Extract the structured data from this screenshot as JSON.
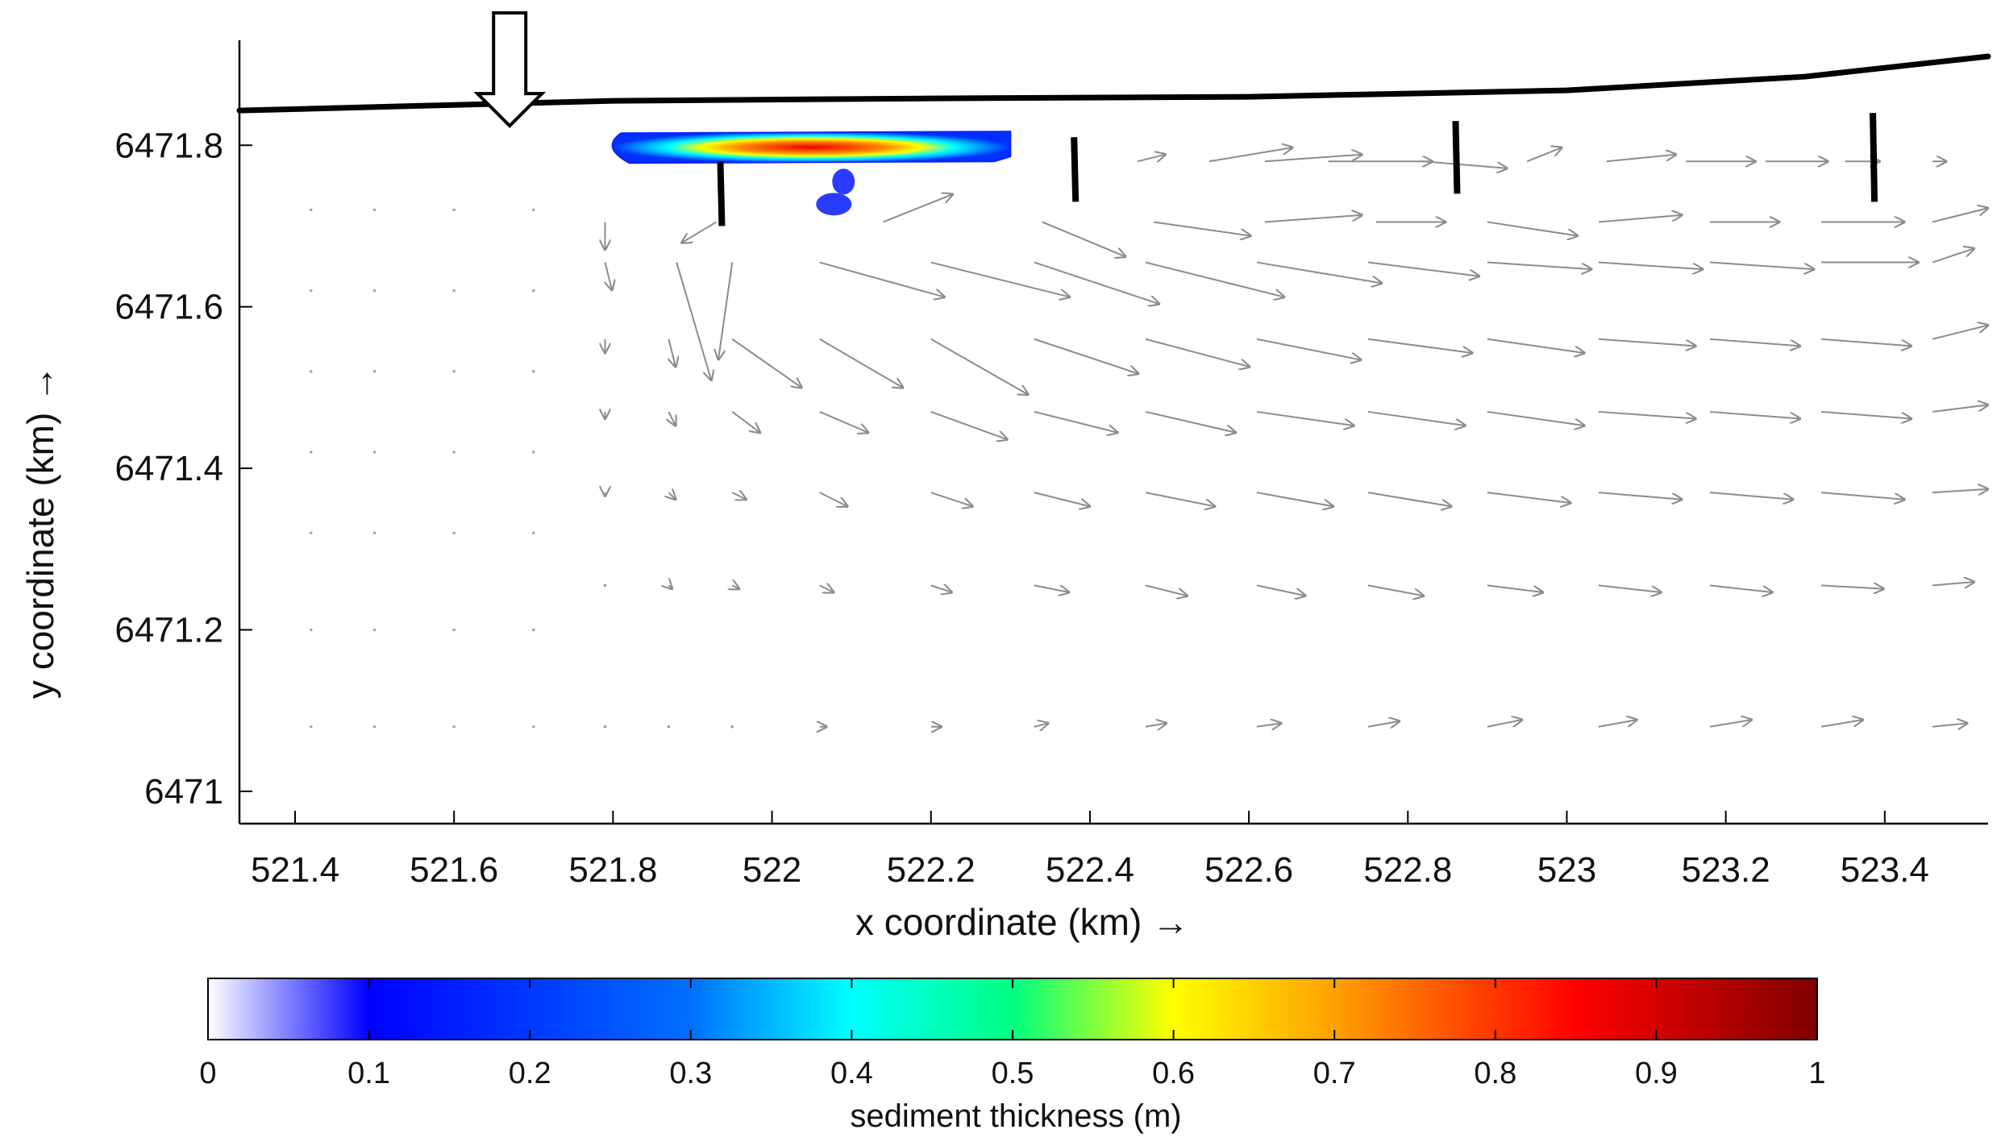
{
  "chart_data": {
    "type": "quiver",
    "xlabel": "x coordinate (km) →",
    "ylabel": "y coordinate (km) →",
    "xlim": [
      521.33,
      523.53
    ],
    "ylim": [
      6470.96,
      6471.92
    ],
    "xticks": [
      521.4,
      521.6,
      521.8,
      522,
      522.2,
      522.4,
      522.6,
      522.8,
      523,
      523.2,
      523.4
    ],
    "xtick_labels": [
      "521.4",
      "521.6",
      "521.8",
      "522",
      "522.2",
      "522.4",
      "522.6",
      "522.8",
      "523",
      "523.2",
      "523.4"
    ],
    "yticks": [
      6471,
      6471.2,
      6471.4,
      6471.6,
      6471.8
    ],
    "ytick_labels": [
      "6471",
      "6471.2",
      "6471.4",
      "6471.6",
      "6471.8"
    ],
    "coastline": [
      [
        521.33,
        6471.843
      ],
      [
        521.8,
        6471.855
      ],
      [
        522.2,
        6471.858
      ],
      [
        522.6,
        6471.86
      ],
      [
        523.0,
        6471.868
      ],
      [
        523.3,
        6471.885
      ],
      [
        523.53,
        6471.91
      ]
    ],
    "groynes": [
      {
        "x": 521.935,
        "y1": 6471.78,
        "y2": 6471.7
      },
      {
        "x": 522.38,
        "y1": 6471.81,
        "y2": 6471.73
      },
      {
        "x": 522.86,
        "y1": 6471.83,
        "y2": 6471.74
      },
      {
        "x": 523.385,
        "y1": 6471.84,
        "y2": 6471.73
      }
    ],
    "inflow_arrow": {
      "x": 521.67,
      "y_top": 6471.94,
      "y_bottom": 6471.86
    },
    "sediment_patches": [
      {
        "name": "nourishment",
        "x_min": 521.79,
        "x_max": 522.3,
        "y_min": 6471.78,
        "y_max": 6471.815,
        "peak_x": 522.09,
        "peak_value": 0.9
      },
      {
        "name": "blob",
        "x": 522.09,
        "y": 6471.745,
        "value": 0.15
      }
    ],
    "vector_rows": [
      {
        "y": 6471.78,
        "x": [
          522.46,
          522.55,
          522.62,
          522.7,
          522.82,
          522.95,
          523.05,
          523.15,
          523.25,
          523.35,
          523.46
        ],
        "u": [
          0.04,
          0.12,
          0.14,
          0.15,
          0.12,
          0.05,
          0.1,
          0.1,
          0.09,
          0.05,
          0.02
        ],
        "v": [
          0.01,
          0.02,
          0.01,
          0.0,
          -0.01,
          0.02,
          0.01,
          0.0,
          0.0,
          0.0,
          0.0
        ]
      },
      {
        "y": 6471.705,
        "x": [
          521.79,
          521.93,
          522.14,
          522.34,
          522.48,
          522.62,
          522.76,
          522.9,
          523.04,
          523.18,
          523.32,
          523.46
        ],
        "u": [
          0.0,
          -0.05,
          0.1,
          0.12,
          0.14,
          0.14,
          0.1,
          0.13,
          0.12,
          0.1,
          0.12,
          0.08
        ],
        "v": [
          -0.04,
          -0.03,
          0.04,
          -0.05,
          -0.02,
          0.01,
          0.0,
          -0.02,
          0.01,
          0.0,
          0.0,
          0.02
        ]
      },
      {
        "y": 6471.655,
        "x": [
          521.79,
          521.88,
          521.95,
          522.06,
          522.2,
          522.33,
          522.47,
          522.61,
          522.75,
          522.9,
          523.04,
          523.18,
          523.32,
          523.46
        ],
        "u": [
          0.01,
          0.05,
          -0.02,
          0.18,
          0.2,
          0.18,
          0.2,
          0.18,
          0.16,
          0.15,
          0.15,
          0.15,
          0.14,
          0.06
        ],
        "v": [
          -0.04,
          -0.17,
          -0.14,
          -0.05,
          -0.05,
          -0.06,
          -0.05,
          -0.03,
          -0.02,
          -0.01,
          -0.01,
          -0.01,
          0.0,
          0.02
        ]
      },
      {
        "y": 6471.56,
        "x": [
          521.79,
          521.87,
          521.95,
          522.06,
          522.2,
          522.33,
          522.47,
          522.61,
          522.75,
          522.9,
          523.04,
          523.18,
          523.32,
          523.46
        ],
        "u": [
          0.0,
          0.01,
          0.1,
          0.12,
          0.14,
          0.15,
          0.15,
          0.15,
          0.15,
          0.14,
          0.14,
          0.13,
          0.13,
          0.08
        ],
        "v": [
          -0.02,
          -0.04,
          -0.07,
          -0.07,
          -0.08,
          -0.05,
          -0.04,
          -0.03,
          -0.02,
          -0.02,
          -0.01,
          -0.01,
          -0.01,
          0.02
        ]
      },
      {
        "y": 6471.47,
        "x": [
          521.79,
          521.87,
          521.95,
          522.06,
          522.2,
          522.33,
          522.47,
          522.61,
          522.75,
          522.9,
          523.04,
          523.18,
          523.32,
          523.46
        ],
        "u": [
          0.0,
          0.01,
          0.04,
          0.07,
          0.11,
          0.12,
          0.13,
          0.14,
          0.14,
          0.14,
          0.14,
          0.13,
          0.13,
          0.08
        ],
        "v": [
          -0.01,
          -0.02,
          -0.03,
          -0.03,
          -0.04,
          -0.03,
          -0.03,
          -0.02,
          -0.02,
          -0.02,
          -0.01,
          -0.01,
          -0.01,
          0.01
        ]
      },
      {
        "y": 6471.37,
        "x": [
          521.79,
          521.87,
          521.95,
          522.06,
          522.2,
          522.33,
          522.47,
          522.61,
          522.75,
          522.9,
          523.04,
          523.18,
          523.32,
          523.46
        ],
        "u": [
          0.0,
          0.01,
          0.02,
          0.04,
          0.06,
          0.08,
          0.1,
          0.11,
          0.12,
          0.12,
          0.12,
          0.12,
          0.12,
          0.08
        ],
        "v": [
          -0.005,
          -0.01,
          -0.01,
          -0.02,
          -0.02,
          -0.02,
          -0.02,
          -0.02,
          -0.02,
          -0.015,
          -0.01,
          -0.01,
          -0.01,
          0.005
        ]
      },
      {
        "y": 6471.255,
        "x": [
          521.79,
          521.87,
          521.95,
          522.06,
          522.2,
          522.33,
          522.47,
          522.61,
          522.75,
          522.9,
          523.04,
          523.18,
          523.32,
          523.46
        ],
        "u": [
          0.0,
          0.005,
          0.01,
          0.02,
          0.03,
          0.05,
          0.06,
          0.07,
          0.08,
          0.08,
          0.09,
          0.09,
          0.09,
          0.06
        ],
        "v": [
          0.0,
          -0.005,
          -0.005,
          -0.01,
          -0.01,
          -0.01,
          -0.015,
          -0.015,
          -0.015,
          -0.01,
          -0.01,
          -0.01,
          -0.005,
          0.005
        ]
      },
      {
        "y": 6471.08,
        "x": [
          521.79,
          521.87,
          521.95,
          522.06,
          522.2,
          522.33,
          522.47,
          522.61,
          522.75,
          522.9,
          523.04,
          523.18,
          523.32,
          523.46
        ],
        "u": [
          0.0,
          0.002,
          0.004,
          0.01,
          0.015,
          0.02,
          0.03,
          0.035,
          0.045,
          0.05,
          0.055,
          0.06,
          0.06,
          0.05
        ],
        "v": [
          0.0,
          0.0,
          0.0,
          0.0,
          0.0,
          0.005,
          0.005,
          0.005,
          0.008,
          0.01,
          0.01,
          0.01,
          0.01,
          0.005
        ]
      }
    ],
    "colorbar": {
      "title": "sediment thickness (m)",
      "min": 0,
      "max": 1,
      "ticks": [
        0,
        0.1,
        0.2,
        0.3,
        0.4,
        0.5,
        0.6,
        0.7,
        0.8,
        0.9,
        1
      ],
      "tick_labels": [
        "0",
        "0.1",
        "0.2",
        "0.3",
        "0.4",
        "0.5",
        "0.6",
        "0.7",
        "0.8",
        "0.9",
        "1"
      ],
      "colormap": "jet with white at zero",
      "colors": [
        "#ffffff",
        "#0000ff",
        "#00ffff",
        "#00ff80",
        "#ffff00",
        "#ff8000",
        "#ff0000",
        "#7f0000"
      ]
    }
  }
}
